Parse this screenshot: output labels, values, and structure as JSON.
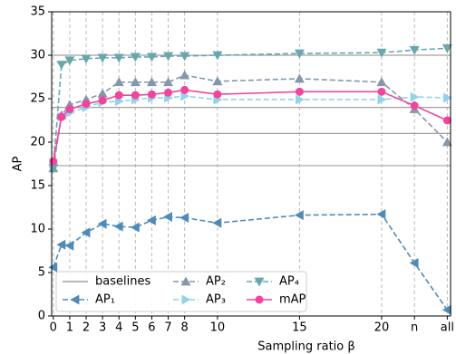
{
  "chart_data": {
    "type": "line",
    "xlabel": "Sampling ratio β",
    "ylabel": "AP",
    "x": [
      0,
      0.5,
      1,
      2,
      3,
      4,
      5,
      6,
      7,
      8,
      10,
      15,
      20,
      22,
      24
    ],
    "xlim": [
      -0.1,
      24.2
    ],
    "xticks": [
      0,
      1,
      2,
      3,
      4,
      5,
      6,
      7,
      8,
      10,
      15,
      20,
      {
        "value": 22,
        "label": "n"
      },
      {
        "value": 24,
        "label": "all"
      }
    ],
    "ylim": [
      0,
      35
    ],
    "yticks": [
      0,
      5,
      10,
      15,
      20,
      25,
      30,
      35
    ],
    "grid": true,
    "legend": "lower left",
    "baselines": {
      "name": "baselines",
      "color": "#a0a0a0",
      "values": [
        30,
        24,
        21,
        17.3
      ]
    },
    "series": [
      {
        "name": "AP₁",
        "color": "#4f8bb8",
        "marker": "left",
        "dashed": true,
        "values": [
          5.6,
          8.2,
          8.1,
          9.6,
          10.6,
          10.3,
          10.2,
          11.0,
          11.4,
          11.3,
          10.7,
          11.6,
          11.7,
          6.1,
          0.7
        ]
      },
      {
        "name": "AP₂",
        "color": "#8497ab",
        "marker": "up",
        "dashed": true,
        "values": [
          17.0,
          23.1,
          24.3,
          24.9,
          25.6,
          26.9,
          26.9,
          26.9,
          26.9,
          27.7,
          27.0,
          27.3,
          26.9,
          23.8,
          20.0
        ]
      },
      {
        "name": "AP₃",
        "color": "#93d3ea",
        "marker": "right",
        "dashed": true,
        "values": [
          17.5,
          22.9,
          23.4,
          24.0,
          24.6,
          24.7,
          24.9,
          25.1,
          25.1,
          25.3,
          24.9,
          24.9,
          24.9,
          25.2,
          25.1
        ]
      },
      {
        "name": "AP₄",
        "color": "#6aa7ad",
        "marker": "down",
        "dashed": true,
        "values": [
          17.0,
          28.9,
          29.4,
          29.6,
          29.7,
          29.7,
          29.8,
          29.8,
          29.9,
          29.9,
          30.0,
          30.2,
          30.3,
          30.6,
          30.8
        ]
      },
      {
        "name": "mAP",
        "color": "#f2449c",
        "marker": "circle",
        "dashed": false,
        "values": [
          17.8,
          22.9,
          23.8,
          24.4,
          24.8,
          25.4,
          25.4,
          25.5,
          25.7,
          26.0,
          25.5,
          25.8,
          25.8,
          24.2,
          22.5
        ]
      }
    ]
  }
}
